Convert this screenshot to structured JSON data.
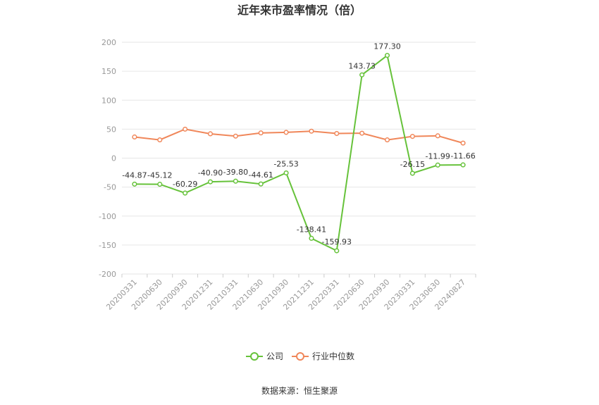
{
  "chart_data": {
    "type": "line",
    "title": "近年来市盈率情况（倍）",
    "categories": [
      "20200331",
      "20200630",
      "20200930",
      "20201231",
      "20210331",
      "20210630",
      "20210930",
      "20211231",
      "20220331",
      "20220630",
      "20220930",
      "20230331",
      "20230630",
      "20240827"
    ],
    "series": [
      {
        "name": "公司",
        "color": "#66c23a",
        "values": [
          -44.87,
          -45.12,
          -60.29,
          -40.9,
          -39.8,
          -44.61,
          -25.53,
          -138.41,
          -159.93,
          143.73,
          177.3,
          -26.15,
          -11.99,
          -11.66
        ],
        "labels": [
          "-44.87",
          "-45.12",
          "-60.29",
          "-40.90",
          "-39.80",
          "-44.61",
          "-25.53",
          "-138.41",
          "-159.93",
          "143.73",
          "177.30",
          "-26.15",
          "-11.99",
          "-11.66"
        ]
      },
      {
        "name": "行业中位数",
        "color": "#f0875a",
        "values": [
          36.5,
          31.5,
          50.0,
          42.0,
          38.0,
          43.5,
          44.5,
          46.5,
          42.5,
          43.0,
          31.5,
          37.5,
          38.5,
          26.0
        ]
      }
    ],
    "ylim": [
      -200,
      200
    ],
    "yticks": [
      "200",
      "150",
      "100",
      "50",
      "0",
      "-50",
      "-100",
      "-150",
      "-200"
    ],
    "ytick_values": [
      200,
      150,
      100,
      50,
      0,
      -50,
      -100,
      -150,
      -200
    ],
    "grid": true,
    "legend": "bottom-center",
    "source": "数据来源：恒生聚源"
  }
}
